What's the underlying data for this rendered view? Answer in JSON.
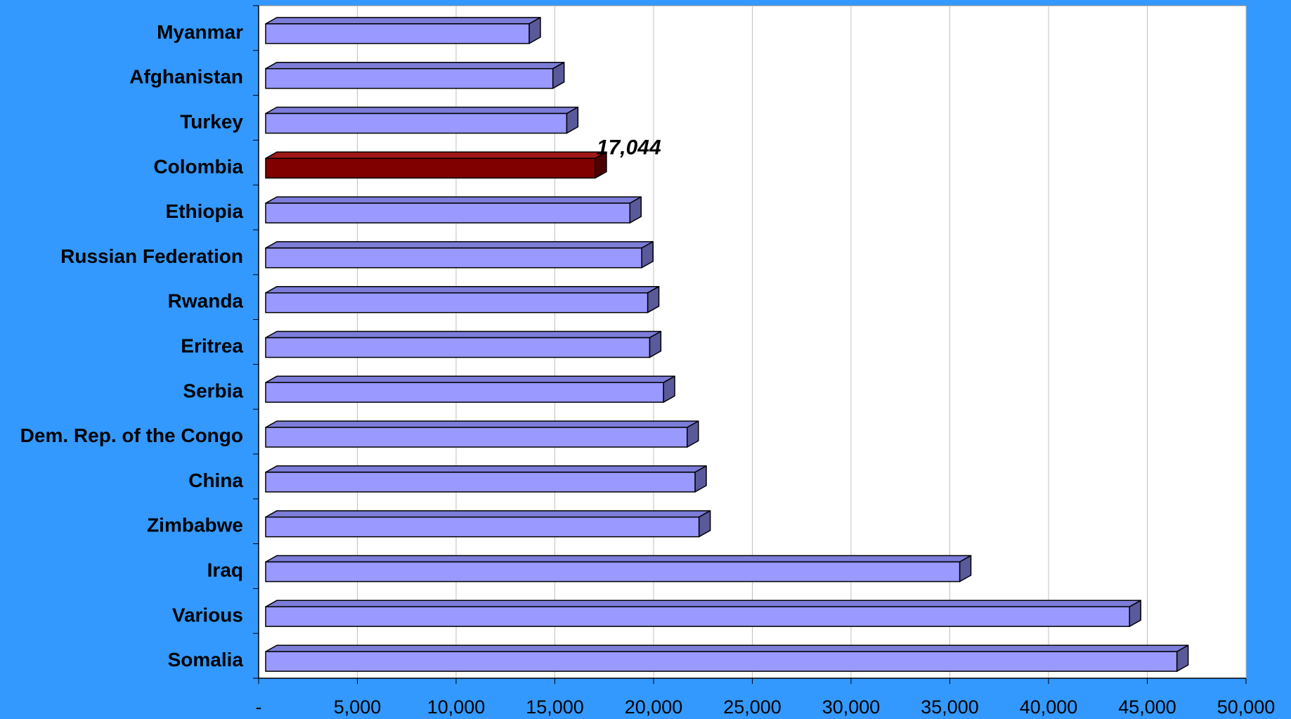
{
  "colors": {
    "background": "#3399ff",
    "plot_area": "#ffffff",
    "bar_face": "#9999ff",
    "bar_side": "#5a5a9a",
    "bar_top": "#7c7cd9",
    "highlight_face": "#800000",
    "highlight_side": "#4d0000",
    "highlight_top": "#a01818",
    "gridline": "#c0c0c0",
    "outline": "#000000"
  },
  "chart_data": {
    "type": "bar",
    "orientation": "horizontal",
    "style": "3d",
    "title": "",
    "xlabel": "",
    "ylabel": "",
    "xlim": [
      0,
      50000
    ],
    "grid": "vertical",
    "categories": [
      "Myanmar",
      "Afghanistan",
      "Turkey",
      "Colombia",
      "Ethiopia",
      "Russian Federation",
      "Rwanda",
      "Eritrea",
      "Serbia",
      "Dem. Rep. of the Congo",
      "China",
      "Zimbabwe",
      "Iraq",
      "Various",
      "Somalia"
    ],
    "values": [
      13700,
      14900,
      15600,
      17044,
      18800,
      19400,
      19700,
      19800,
      20500,
      21700,
      22100,
      22300,
      35500,
      44100,
      46500
    ],
    "highlight_index": 3,
    "data_labels": [
      {
        "index": 3,
        "text": "17,044"
      }
    ],
    "x_ticks": [
      {
        "value": 0,
        "label": "-"
      },
      {
        "value": 5000,
        "label": "5,000"
      },
      {
        "value": 10000,
        "label": "10,000"
      },
      {
        "value": 15000,
        "label": "15,000"
      },
      {
        "value": 20000,
        "label": "20,000"
      },
      {
        "value": 25000,
        "label": "25,000"
      },
      {
        "value": 30000,
        "label": "30,000"
      },
      {
        "value": 35000,
        "label": "35,000"
      },
      {
        "value": 40000,
        "label": "40,000"
      },
      {
        "value": 45000,
        "label": "45,000"
      },
      {
        "value": 50000,
        "label": "50,000"
      }
    ]
  }
}
